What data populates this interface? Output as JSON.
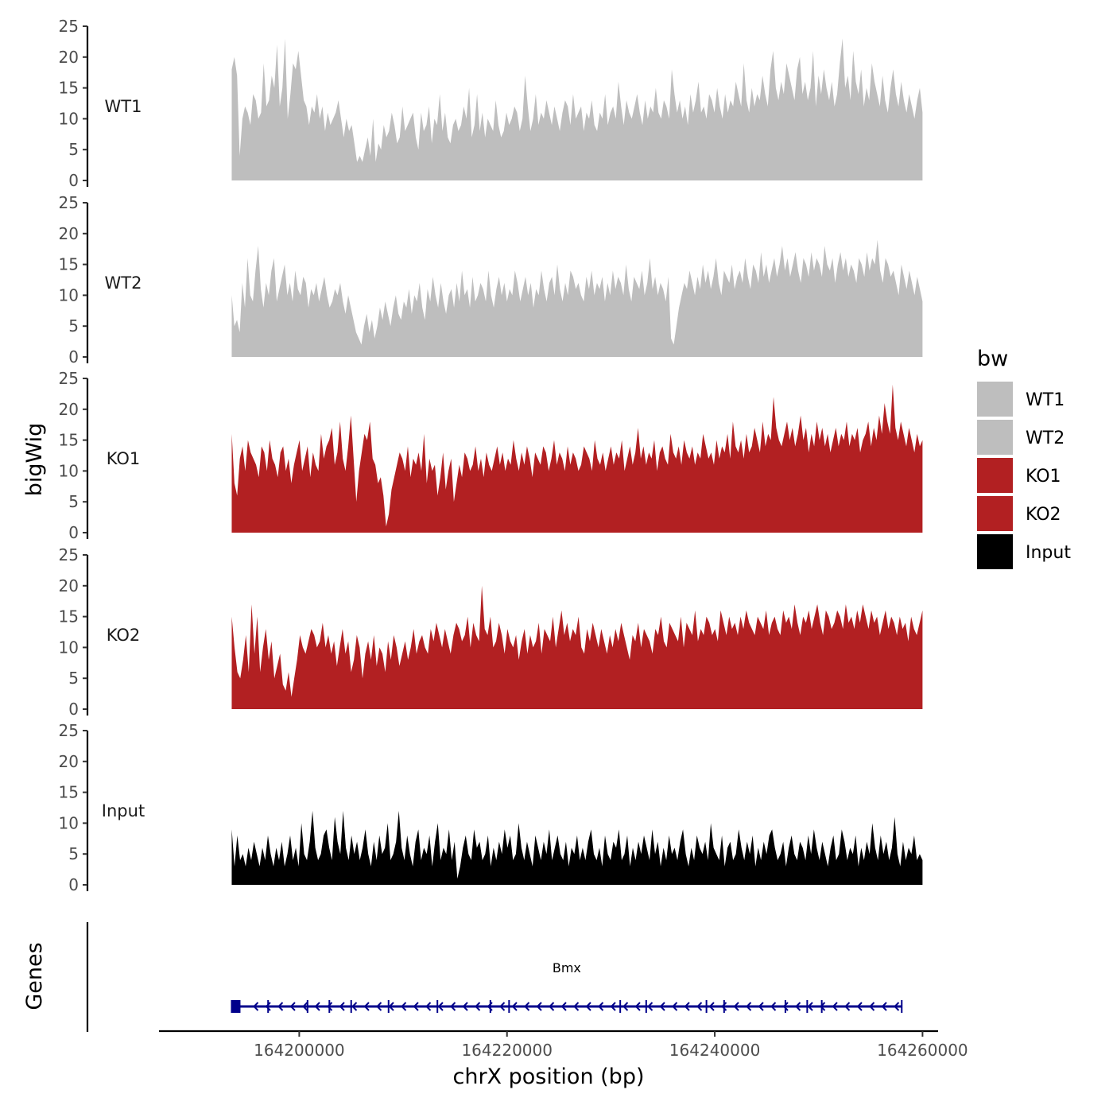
{
  "chart_data": {
    "type": "area",
    "title": "",
    "ylabel": "bigWig",
    "xlabel": "chrX position (bp)",
    "ylim": [
      0,
      25
    ],
    "yticks": [
      0,
      5,
      10,
      15,
      20,
      25
    ],
    "xlim": [
      164186500,
      164261500
    ],
    "xticks": [
      164200000,
      164220000,
      164240000,
      164260000
    ],
    "tick_labels_x": [
      "164200000",
      "164220000",
      "164240000",
      "164260000"
    ],
    "x_start": 164193500,
    "x_end": 164260000,
    "tracks": [
      {
        "name": "WT1",
        "color": "#bebebe",
        "values": [
          18,
          20,
          17,
          4,
          10,
          12,
          11,
          9,
          14,
          13,
          10,
          11,
          19,
          12,
          13,
          17,
          15,
          22,
          12,
          15,
          23,
          10,
          14,
          19,
          18,
          21,
          17,
          13,
          12,
          9,
          12,
          11,
          14,
          10,
          12,
          8,
          11,
          9,
          10,
          11,
          13,
          10,
          7,
          10,
          8,
          9,
          6,
          3,
          4,
          3,
          5,
          7,
          4,
          10,
          3,
          6,
          5,
          9,
          7,
          8,
          11,
          9,
          6,
          7,
          12,
          8,
          9,
          10,
          11,
          7,
          5,
          11,
          8,
          9,
          12,
          6,
          10,
          9,
          14,
          8,
          11,
          7,
          6,
          9,
          10,
          8,
          9,
          12,
          10,
          15,
          7,
          9,
          14,
          8,
          11,
          7,
          10,
          9,
          8,
          13,
          9,
          7,
          8,
          11,
          9,
          10,
          12,
          11,
          8,
          10,
          17,
          12,
          8,
          10,
          14,
          9,
          11,
          10,
          13,
          11,
          9,
          12,
          10,
          8,
          11,
          13,
          12,
          9,
          14,
          10,
          11,
          12,
          8,
          11,
          10,
          13,
          9,
          8,
          11,
          10,
          14,
          9,
          11,
          12,
          10,
          16,
          12,
          9,
          13,
          11,
          10,
          12,
          14,
          11,
          9,
          13,
          10,
          12,
          11,
          15,
          11,
          10,
          13,
          12,
          10,
          18,
          14,
          11,
          13,
          10,
          12,
          9,
          14,
          11,
          13,
          16,
          11,
          12,
          10,
          14,
          13,
          11,
          15,
          12,
          10,
          14,
          11,
          13,
          12,
          16,
          14,
          12,
          19,
          13,
          11,
          15,
          12,
          14,
          13,
          17,
          14,
          12,
          18,
          21,
          15,
          13,
          16,
          14,
          19,
          17,
          15,
          13,
          18,
          20,
          14,
          16,
          13,
          15,
          21,
          12,
          17,
          14,
          18,
          15,
          13,
          16,
          12,
          14,
          19,
          23,
          15,
          17,
          13,
          21,
          16,
          14,
          18,
          12,
          15,
          13,
          19,
          16,
          14,
          12,
          17,
          13,
          11,
          15,
          18,
          14,
          12,
          16,
          13,
          11,
          14,
          12,
          10,
          13,
          15,
          11
        ]
      },
      {
        "name": "WT2",
        "color": "#bebebe",
        "values": [
          10,
          5,
          6,
          4,
          12,
          8,
          16,
          10,
          9,
          14,
          18,
          11,
          8,
          12,
          10,
          14,
          16,
          9,
          11,
          13,
          15,
          10,
          12,
          9,
          14,
          11,
          10,
          13,
          12,
          8,
          11,
          10,
          12,
          9,
          11,
          13,
          10,
          8,
          9,
          11,
          10,
          12,
          9,
          7,
          10,
          8,
          6,
          4,
          3,
          2,
          5,
          7,
          4,
          6,
          3,
          5,
          8,
          6,
          9,
          7,
          5,
          8,
          10,
          7,
          6,
          9,
          8,
          11,
          7,
          10,
          9,
          12,
          8,
          6,
          11,
          9,
          13,
          10,
          8,
          12,
          9,
          7,
          10,
          11,
          8,
          12,
          9,
          14,
          10,
          11,
          8,
          13,
          9,
          10,
          12,
          11,
          9,
          14,
          10,
          8,
          11,
          13,
          10,
          12,
          9,
          11,
          10,
          14,
          12,
          9,
          11,
          13,
          10,
          12,
          8,
          11,
          10,
          14,
          11,
          9,
          12,
          13,
          10,
          15,
          11,
          9,
          12,
          10,
          14,
          13,
          11,
          12,
          10,
          9,
          13,
          11,
          14,
          10,
          12,
          11,
          13,
          9,
          12,
          10,
          14,
          11,
          13,
          12,
          10,
          15,
          11,
          9,
          13,
          12,
          11,
          14,
          10,
          12,
          16,
          11,
          13,
          10,
          12,
          11,
          9,
          13,
          3,
          2,
          5,
          8,
          10,
          12,
          11,
          14,
          12,
          10,
          13,
          11,
          15,
          12,
          14,
          11,
          13,
          16,
          12,
          10,
          14,
          13,
          12,
          15,
          11,
          13,
          14,
          12,
          16,
          13,
          11,
          15,
          14,
          12,
          17,
          13,
          15,
          12,
          14,
          16,
          13,
          15,
          18,
          14,
          16,
          13,
          15,
          17,
          14,
          12,
          16,
          15,
          13,
          17,
          14,
          16,
          15,
          13,
          18,
          15,
          14,
          16,
          12,
          15,
          17,
          14,
          16,
          13,
          15,
          14,
          12,
          16,
          15,
          13,
          17,
          14,
          16,
          15,
          19,
          14,
          12,
          16,
          15,
          13,
          14,
          12,
          10,
          15,
          13,
          11,
          14,
          12,
          10,
          13,
          11,
          9
        ]
      },
      {
        "name": "KO1",
        "color": "#b22022",
        "values": [
          16,
          8,
          6,
          12,
          14,
          10,
          15,
          13,
          12,
          11,
          9,
          14,
          13,
          10,
          15,
          12,
          11,
          9,
          13,
          14,
          10,
          12,
          8,
          11,
          13,
          15,
          10,
          12,
          14,
          9,
          13,
          11,
          10,
          16,
          12,
          14,
          15,
          17,
          11,
          13,
          18,
          12,
          10,
          14,
          19,
          12,
          5,
          10,
          13,
          16,
          15,
          18,
          12,
          11,
          8,
          9,
          6,
          1,
          3,
          7,
          9,
          11,
          13,
          12,
          10,
          14,
          9,
          12,
          11,
          13,
          10,
          16,
          8,
          12,
          10,
          11,
          6,
          9,
          13,
          7,
          10,
          12,
          5,
          8,
          11,
          9,
          13,
          12,
          10,
          11,
          14,
          10,
          12,
          9,
          13,
          11,
          10,
          12,
          14,
          11,
          13,
          10,
          12,
          11,
          15,
          12,
          10,
          13,
          11,
          14,
          12,
          9,
          13,
          12,
          11,
          14,
          13,
          10,
          12,
          15,
          11,
          13,
          12,
          10,
          14,
          11,
          13,
          12,
          10,
          11,
          14,
          13,
          12,
          10,
          15,
          12,
          11,
          13,
          10,
          12,
          14,
          11,
          13,
          12,
          15,
          10,
          12,
          14,
          11,
          13,
          17,
          12,
          14,
          11,
          13,
          12,
          15,
          10,
          13,
          14,
          12,
          11,
          16,
          13,
          12,
          14,
          11,
          15,
          13,
          12,
          14,
          11,
          13,
          12,
          16,
          14,
          12,
          13,
          11,
          15,
          12,
          14,
          13,
          16,
          12,
          18,
          14,
          13,
          15,
          12,
          16,
          13,
          14,
          17,
          15,
          13,
          18,
          14,
          16,
          15,
          22,
          17,
          15,
          14,
          16,
          18,
          15,
          17,
          14,
          16,
          19,
          15,
          17,
          13,
          16,
          14,
          18,
          15,
          17,
          14,
          16,
          13,
          15,
          17,
          14,
          16,
          15,
          18,
          14,
          16,
          15,
          17,
          13,
          15,
          16,
          18,
          14,
          17,
          15,
          19,
          16,
          21,
          18,
          16,
          24,
          17,
          15,
          18,
          16,
          14,
          17,
          15,
          13,
          16,
          14,
          15
        ]
      },
      {
        "name": "KO2",
        "color": "#b22022",
        "values": [
          15,
          10,
          6,
          5,
          8,
          12,
          6,
          17,
          9,
          15,
          6,
          10,
          13,
          8,
          11,
          5,
          7,
          9,
          4,
          3,
          6,
          2,
          5,
          8,
          12,
          10,
          9,
          11,
          13,
          12,
          10,
          11,
          14,
          10,
          12,
          9,
          11,
          7,
          10,
          13,
          9,
          11,
          6,
          8,
          12,
          10,
          5,
          9,
          11,
          8,
          12,
          7,
          10,
          9,
          6,
          11,
          8,
          12,
          10,
          7,
          9,
          11,
          8,
          10,
          13,
          9,
          11,
          12,
          10,
          9,
          13,
          11,
          14,
          12,
          10,
          13,
          11,
          9,
          12,
          14,
          13,
          11,
          12,
          15,
          10,
          14,
          12,
          11,
          20,
          13,
          12,
          15,
          10,
          11,
          14,
          12,
          9,
          13,
          11,
          10,
          12,
          8,
          11,
          13,
          9,
          12,
          10,
          11,
          14,
          9,
          13,
          12,
          11,
          15,
          10,
          13,
          16,
          12,
          14,
          11,
          13,
          12,
          15,
          10,
          9,
          13,
          11,
          14,
          12,
          10,
          13,
          11,
          9,
          12,
          10,
          13,
          11,
          14,
          12,
          10,
          8,
          12,
          11,
          14,
          10,
          13,
          12,
          11,
          9,
          13,
          12,
          15,
          11,
          10,
          14,
          13,
          12,
          11,
          15,
          10,
          14,
          13,
          12,
          16,
          11,
          13,
          12,
          15,
          14,
          12,
          13,
          11,
          16,
          14,
          12,
          15,
          13,
          14,
          12,
          15,
          13,
          16,
          14,
          13,
          12,
          15,
          14,
          13,
          16,
          12,
          14,
          15,
          13,
          12,
          16,
          14,
          15,
          13,
          17,
          14,
          12,
          15,
          14,
          16,
          13,
          15,
          17,
          14,
          12,
          16,
          15,
          13,
          14,
          16,
          15,
          13,
          17,
          14,
          15,
          13,
          16,
          14,
          17,
          15,
          13,
          16,
          14,
          15,
          12,
          14,
          16,
          13,
          15,
          14,
          12,
          15,
          13,
          14,
          11,
          15,
          13,
          12,
          14,
          16
        ]
      },
      {
        "name": "Input",
        "color": "#000000",
        "values": [
          9,
          3,
          8,
          4,
          5,
          3,
          6,
          4,
          7,
          5,
          3,
          6,
          4,
          8,
          5,
          3,
          6,
          4,
          7,
          3,
          5,
          8,
          4,
          6,
          3,
          10,
          5,
          4,
          7,
          12,
          6,
          4,
          5,
          8,
          9,
          6,
          4,
          11,
          7,
          5,
          12,
          6,
          4,
          8,
          5,
          7,
          4,
          6,
          9,
          5,
          3,
          7,
          4,
          8,
          5,
          6,
          10,
          4,
          5,
          7,
          12,
          6,
          4,
          8,
          5,
          3,
          7,
          9,
          4,
          6,
          5,
          8,
          3,
          7,
          10,
          4,
          6,
          5,
          9,
          4,
          7,
          1,
          3,
          6,
          8,
          5,
          4,
          9,
          6,
          7,
          4,
          5,
          8,
          3,
          6,
          4,
          7,
          5,
          9,
          6,
          8,
          4,
          5,
          10,
          6,
          4,
          7,
          5,
          3,
          8,
          6,
          4,
          7,
          5,
          9,
          4,
          6,
          8,
          5,
          4,
          7,
          3,
          6,
          5,
          8,
          4,
          6,
          4,
          7,
          9,
          5,
          4,
          6,
          3,
          8,
          5,
          4,
          7,
          6,
          9,
          4,
          5,
          8,
          3,
          6,
          4,
          7,
          5,
          8,
          6,
          4,
          9,
          5,
          7,
          3,
          6,
          4,
          8,
          5,
          6,
          4,
          7,
          9,
          5,
          3,
          6,
          4,
          8,
          6,
          5,
          7,
          4,
          10,
          6,
          5,
          4,
          8,
          3,
          6,
          7,
          4,
          5,
          9,
          6,
          4,
          7,
          5,
          8,
          3,
          6,
          4,
          7,
          5,
          8,
          9,
          6,
          4,
          5,
          7,
          3,
          6,
          8,
          5,
          4,
          7,
          6,
          4,
          8,
          5,
          9,
          6,
          4,
          7,
          5,
          3,
          6,
          8,
          4,
          5,
          9,
          7,
          4,
          6,
          5,
          8,
          3,
          6,
          4,
          7,
          5,
          10,
          6,
          4,
          8,
          5,
          7,
          4,
          6,
          11,
          5,
          3,
          7,
          4,
          6,
          5,
          8,
          4,
          5,
          4
        ]
      }
    ],
    "legend": {
      "title": "bw",
      "placement": "right",
      "items": [
        {
          "label": "WT1",
          "color": "#bebebe"
        },
        {
          "label": "WT2",
          "color": "#bebebe"
        },
        {
          "label": "KO1",
          "color": "#b22022"
        },
        {
          "label": "KO2",
          "color": "#b22022"
        },
        {
          "label": "Input",
          "color": "#000000"
        }
      ]
    },
    "genes": {
      "ylabel": "Genes",
      "color": "#00008b",
      "items": [
        {
          "name": "Bmx",
          "start": 164193500,
          "end": 164258000,
          "strand": "-",
          "exons": [
            164193500,
            164197000,
            164200800,
            164202900,
            164205000,
            164208600,
            164213300,
            164218400,
            164220200,
            164230900,
            164233400,
            164239200,
            164240900,
            164246800,
            164248900,
            164250300,
            164258000
          ]
        }
      ]
    }
  }
}
